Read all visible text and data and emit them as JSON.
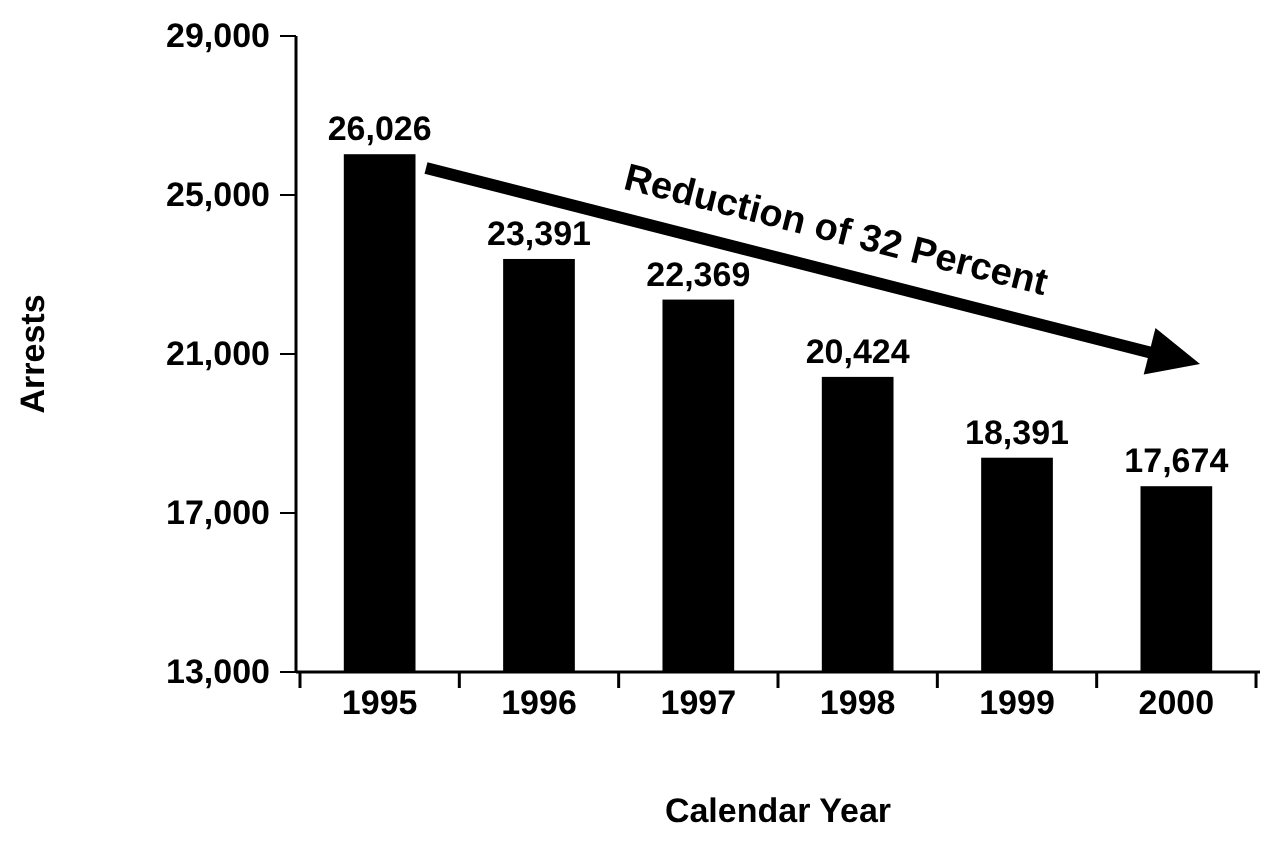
{
  "chart_data": {
    "type": "bar",
    "xlabel": "Calendar Year",
    "ylabel": "Arrests",
    "categories": [
      "1995",
      "1996",
      "1997",
      "1998",
      "1999",
      "2000"
    ],
    "values": [
      26026,
      23391,
      22369,
      20424,
      18391,
      17674
    ],
    "color": "#000000",
    "ylim": [
      13000,
      29000
    ],
    "yticks": [
      {
        "value": 13000,
        "label": "13,000"
      },
      {
        "value": 17000,
        "label": "17,000"
      },
      {
        "value": 21000,
        "label": "21,000"
      },
      {
        "value": 25000,
        "label": "25,000"
      },
      {
        "value": 29000,
        "label": "29,000"
      }
    ],
    "value_labels": [
      "26,026",
      "23,391",
      "22,369",
      "20,424",
      "18,391",
      "17,674"
    ],
    "grid": false,
    "annotations": [
      "Reduction of 32 Percent"
    ]
  }
}
